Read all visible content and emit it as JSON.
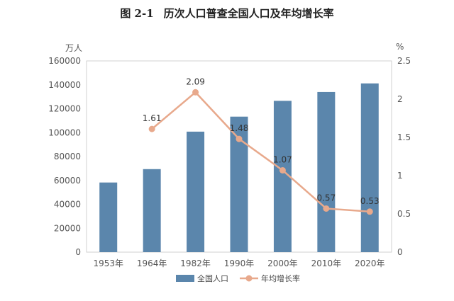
{
  "title": {
    "fig": "图 2-1",
    "text": "历次人口普查全国人口及年均增长率"
  },
  "chart_data": {
    "type": "bar",
    "categories": [
      "1953年",
      "1964年",
      "1982年",
      "1990年",
      "2000年",
      "2010年",
      "2020年"
    ],
    "series": [
      {
        "name": "全国人口",
        "type": "bar",
        "axis": "left",
        "color": "#5b86ac",
        "values": [
          58260,
          69458,
          100818,
          113368,
          126583,
          133972,
          141178
        ]
      },
      {
        "name": "年均增长率",
        "type": "line",
        "axis": "right",
        "color": "#e8a98c",
        "values": [
          null,
          1.61,
          2.09,
          1.48,
          1.07,
          0.57,
          0.53
        ],
        "labels": [
          "",
          "1.61",
          "2.09",
          "1.48",
          "1.07",
          "0.57",
          "0.53"
        ]
      }
    ],
    "y_left": {
      "unit": "万人",
      "ylim": [
        0,
        160000
      ],
      "ticks": [
        "0",
        "20000",
        "40000",
        "60000",
        "80000",
        "100000",
        "120000",
        "140000",
        "160000"
      ]
    },
    "y_right": {
      "unit": "%",
      "ylim": [
        0,
        2.5
      ],
      "ticks": [
        "0",
        "0.5",
        "1",
        "1.5",
        "2",
        "2.5"
      ]
    },
    "grid": false,
    "legend_position": "bottom"
  }
}
